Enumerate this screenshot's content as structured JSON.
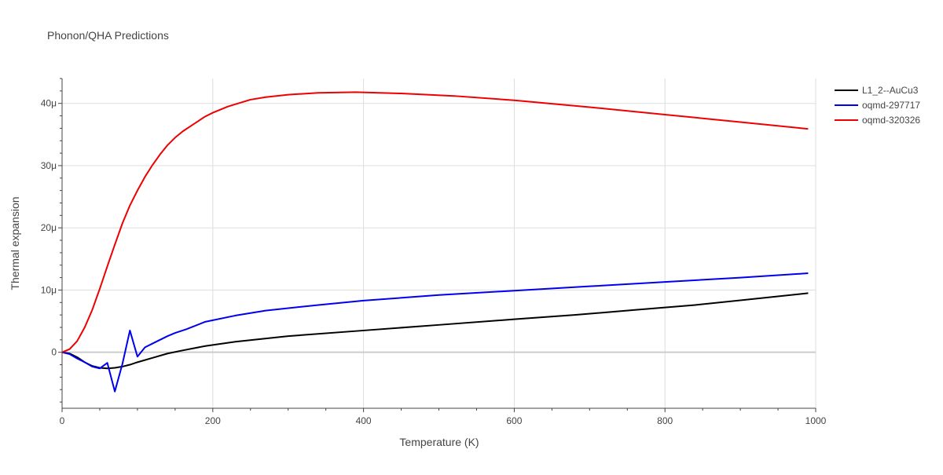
{
  "chart_data": {
    "type": "line",
    "title": "Phonon/QHA Predictions",
    "xlabel": "Temperature (K)",
    "ylabel": "Thermal expansion",
    "xlim": [
      0,
      1000
    ],
    "ylim": [
      -9e-06,
      4.4e-05
    ],
    "x_ticks": [
      {
        "value": 0,
        "label": "0"
      },
      {
        "value": 200,
        "label": "200"
      },
      {
        "value": 400,
        "label": "400"
      },
      {
        "value": 600,
        "label": "600"
      },
      {
        "value": 800,
        "label": "800"
      },
      {
        "value": 1000,
        "label": "1000"
      }
    ],
    "y_ticks": [
      {
        "value": 0,
        "label": "0"
      },
      {
        "value": 1e-05,
        "label": "10μ"
      },
      {
        "value": 2e-05,
        "label": "20μ"
      },
      {
        "value": 3e-05,
        "label": "30μ"
      },
      {
        "value": 4e-05,
        "label": "40μ"
      }
    ],
    "grid": true,
    "legend_position": "top-right",
    "series": [
      {
        "name": "L1_2--AuCu3",
        "color": "#000000",
        "x": [
          0,
          10,
          20,
          30,
          40,
          50,
          60,
          70,
          80,
          90,
          100,
          120,
          140,
          160,
          190,
          230,
          300,
          400,
          500,
          600,
          680,
          760,
          840,
          920,
          990
        ],
        "y": [
          0,
          -2e-07,
          -8e-07,
          -1.6e-06,
          -2.2e-06,
          -2.5e-06,
          -2.6e-06,
          -2.5e-06,
          -2.3e-06,
          -2e-06,
          -1.6e-06,
          -9e-07,
          -2e-07,
          3e-07,
          1e-06,
          1.7e-06,
          2.6e-06,
          3.5e-06,
          4.4e-06,
          5.3e-06,
          6e-06,
          6.8e-06,
          7.6e-06,
          8.6e-06,
          9.5e-06
        ]
      },
      {
        "name": "oqmd-297717",
        "color": "#0000ee",
        "x": [
          0,
          10,
          20,
          30,
          40,
          50,
          60,
          70,
          80,
          90,
          100,
          110,
          120,
          130,
          140,
          150,
          165,
          190,
          230,
          270,
          340,
          400,
          500,
          600,
          700,
          800,
          900,
          990
        ],
        "y": [
          0,
          -3e-07,
          -1e-06,
          -1.6e-06,
          -2.3e-06,
          -2.6e-06,
          -1.7e-06,
          -6.3e-06,
          -1.9e-06,
          3.5e-06,
          -7e-07,
          8e-07,
          1.4e-06,
          2e-06,
          2.6e-06,
          3.1e-06,
          3.7e-06,
          4.9e-06,
          5.9e-06,
          6.7e-06,
          7.6e-06,
          8.3e-06,
          9.2e-06,
          9.9e-06,
          1.06e-05,
          1.13e-05,
          1.2e-05,
          1.27e-05
        ]
      },
      {
        "name": "oqmd-320326",
        "color": "#ee0000",
        "x": [
          0,
          10,
          20,
          30,
          40,
          50,
          60,
          70,
          80,
          90,
          100,
          110,
          120,
          130,
          140,
          150,
          160,
          175,
          190,
          200,
          220,
          250,
          270,
          300,
          340,
          390,
          450,
          520,
          600,
          700,
          800,
          900,
          990
        ],
        "y": [
          0,
          5e-07,
          1.8e-06,
          4e-06,
          6.8e-06,
          1.02e-05,
          1.38e-05,
          1.73e-05,
          2.07e-05,
          2.36e-05,
          2.6e-05,
          2.82e-05,
          3.01e-05,
          3.18e-05,
          3.33e-05,
          3.45e-05,
          3.55e-05,
          3.67e-05,
          3.79e-05,
          3.85e-05,
          3.95e-05,
          4.06e-05,
          4.1e-05,
          4.14e-05,
          4.17e-05,
          4.18e-05,
          4.16e-05,
          4.12e-05,
          4.05e-05,
          3.94e-05,
          3.82e-05,
          3.7e-05,
          3.59e-05
        ]
      }
    ]
  }
}
